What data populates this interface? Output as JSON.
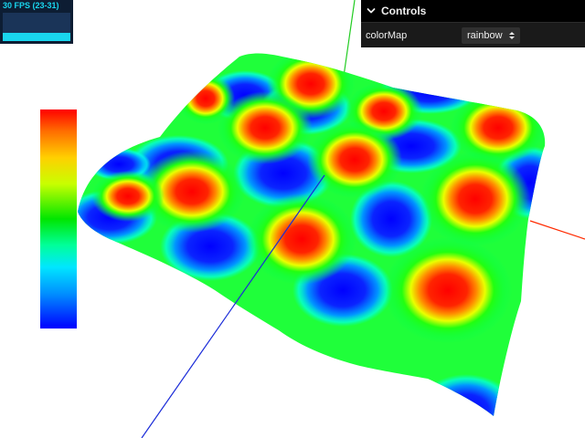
{
  "stats": {
    "fps_text": "30 FPS (23-31)",
    "current_fps_fraction": 0.29
  },
  "controls": {
    "title": "Controls",
    "rows": [
      {
        "name": "colorMap",
        "value": "rainbow"
      }
    ]
  },
  "colorbar": {
    "map": "rainbow",
    "colors_top_to_bottom": [
      "#ff0000",
      "#ff6e00",
      "#ffd000",
      "#c8ff00",
      "#00e600",
      "#00ff9a",
      "#00e6ff",
      "#0090ff",
      "#0000ff"
    ]
  },
  "axes": {
    "x_color": "#ff2a00",
    "y_color": "#22cc22",
    "z_color": "#1a2bd8"
  },
  "surface": {
    "peaks_per_side": 4,
    "color_high": "#ff0000",
    "color_low": "#0000ff"
  }
}
